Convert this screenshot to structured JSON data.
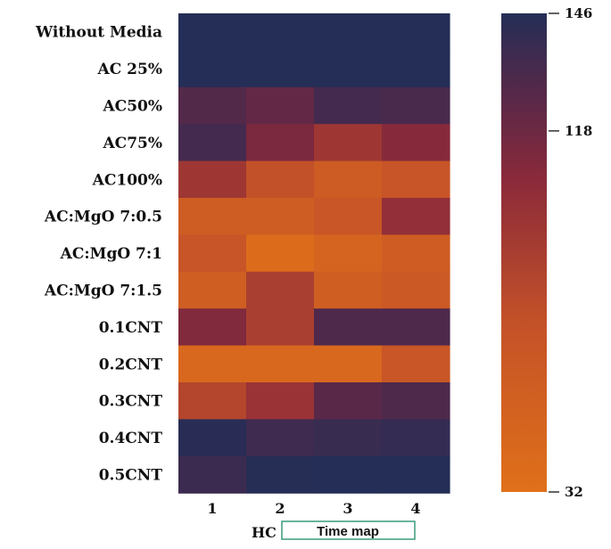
{
  "chart_data": {
    "type": "heatmap",
    "rows": [
      "Without Media",
      "AC 25%",
      "AC50%",
      "AC75%",
      "AC100%",
      "AC:MgO 7:0.5",
      "AC:MgO 7:1",
      "AC:MgO 7:1.5",
      "0.1CNT",
      "0.2CNT",
      "0.3CNT",
      "0.4CNT",
      "0.5CNT"
    ],
    "columns": [
      "1",
      "2",
      "3",
      "4"
    ],
    "values": [
      [
        146,
        146,
        146,
        146
      ],
      [
        146,
        146,
        146,
        146
      ],
      [
        128,
        122,
        134,
        132
      ],
      [
        134,
        113,
        95,
        108
      ],
      [
        95,
        73,
        60,
        68
      ],
      [
        57,
        57,
        66,
        102
      ],
      [
        68,
        38,
        48,
        58
      ],
      [
        56,
        88,
        56,
        62
      ],
      [
        110,
        88,
        130,
        130
      ],
      [
        43,
        43,
        43,
        66
      ],
      [
        82,
        98,
        126,
        130
      ],
      [
        144,
        136,
        138,
        140
      ],
      [
        137,
        145,
        146,
        146
      ]
    ],
    "colorbar": {
      "min": 32,
      "max": 146,
      "ticks": [
        146,
        118,
        32
      ]
    },
    "x_axis_label": "HC",
    "x_axis_box_label": "Time map"
  }
}
